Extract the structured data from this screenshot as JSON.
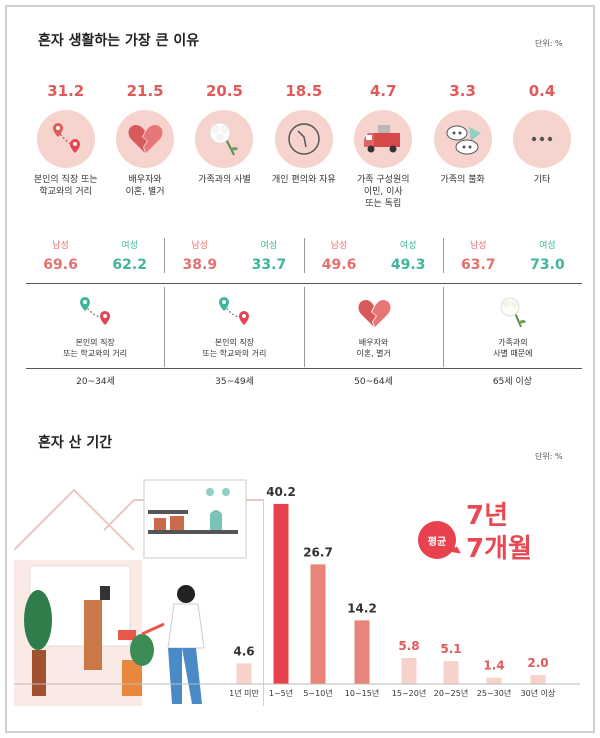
{
  "section1": {
    "title": "혼자 생활하는 가장 큰 이유",
    "unit": "단위: %"
  },
  "reasons": [
    {
      "value": "31.2",
      "label": "본인의 직장 또는\n학교와의 거리",
      "icon": "map-pin-route-icon"
    },
    {
      "value": "21.5",
      "label": "배우자와\n이혼, 별거",
      "icon": "broken-heart-icon"
    },
    {
      "value": "20.5",
      "label": "가족과의 사별",
      "icon": "white-flower-icon"
    },
    {
      "value": "18.5",
      "label": "개인 편의와 자유",
      "icon": "clock-icon"
    },
    {
      "value": "4.7",
      "label": "가족 구성원의\n이민, 이사\n또는 독립",
      "icon": "moving-truck-icon"
    },
    {
      "value": "3.3",
      "label": "가족의 불화",
      "icon": "conflict-icon"
    },
    {
      "value": "0.4",
      "label": "기타",
      "icon": "ellipsis-icon"
    }
  ],
  "gender_labels": {
    "male": "남성",
    "female": "여성"
  },
  "age_groups": [
    {
      "male": "69.6",
      "female": "62.2",
      "reason": "본인의 직장\n또는 학교와의 거리",
      "icon": "map-pin-route-icon",
      "age": "20~34세"
    },
    {
      "male": "38.9",
      "female": "33.7",
      "reason": "본인의 직장\n또는 학교와의 거리",
      "icon": "map-pin-route-icon",
      "age": "35~49세"
    },
    {
      "male": "49.6",
      "female": "49.3",
      "reason": "배우자와\n이혼, 별거",
      "icon": "broken-heart-icon",
      "age": "50~64세"
    },
    {
      "male": "63.7",
      "female": "73.0",
      "reason": "가족과의\n사별 때문에",
      "icon": "white-flower-icon",
      "age": "65세 이상"
    }
  ],
  "section2": {
    "title": "혼자 산 기간",
    "unit": "단위: %",
    "average_badge": "평균",
    "average_line1": "7년",
    "average_line2": "7개월"
  },
  "chart_data": {
    "type": "bar",
    "title": "혼자 산 기간",
    "categories": [
      "1년 미만",
      "1~5년",
      "5~10년",
      "10~15년",
      "15~20년",
      "20~25년",
      "25~30년",
      "30년 이상"
    ],
    "values": [
      4.6,
      40.2,
      26.7,
      14.2,
      5.8,
      5.1,
      1.4,
      2.0
    ],
    "value_labels": [
      "4.6",
      "40.2",
      "26.7",
      "14.2",
      "5.8",
      "5.1",
      "1.4",
      "2.0"
    ],
    "highlight_index": 1,
    "colors": {
      "highlight": "#e8414f",
      "mid": "#e8847a",
      "light": "#f7d2ca",
      "label_strong": "#333333",
      "label_light": "#e05a5a"
    }
  }
}
